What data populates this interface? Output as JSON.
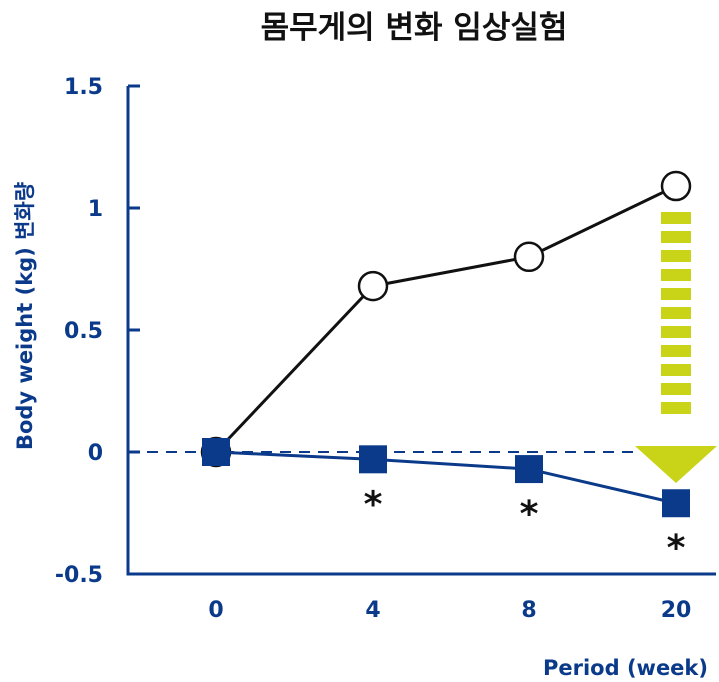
{
  "chart_data": {
    "type": "line",
    "title": "몸무게의 변화 임상실험",
    "xlabel": "Period (week)",
    "ylabel": "Body weight (kg) 변화량",
    "categories": [
      "0",
      "4",
      "8",
      "20"
    ],
    "y_ticks": [
      "1.5",
      "1",
      "0.5",
      "0",
      "-0.5"
    ],
    "ylim": [
      -0.5,
      1.5
    ],
    "grid": false,
    "baseline_value": 0,
    "series": [
      {
        "marker": "open-circle",
        "color": "#111111",
        "values": [
          0,
          0.68,
          0.8,
          1.09
        ]
      },
      {
        "marker": "filled-square",
        "color": "#0b3a8a",
        "values": [
          0,
          -0.03,
          -0.07,
          -0.21
        ],
        "significance": [
          "",
          "*",
          "*",
          "*"
        ]
      }
    ],
    "annotation": {
      "type": "downward-dashed-arrow",
      "color": "#c9d317",
      "at_category": "20"
    },
    "colors": {
      "axis": "#0b3a8a",
      "text_dark": "#111111"
    }
  }
}
